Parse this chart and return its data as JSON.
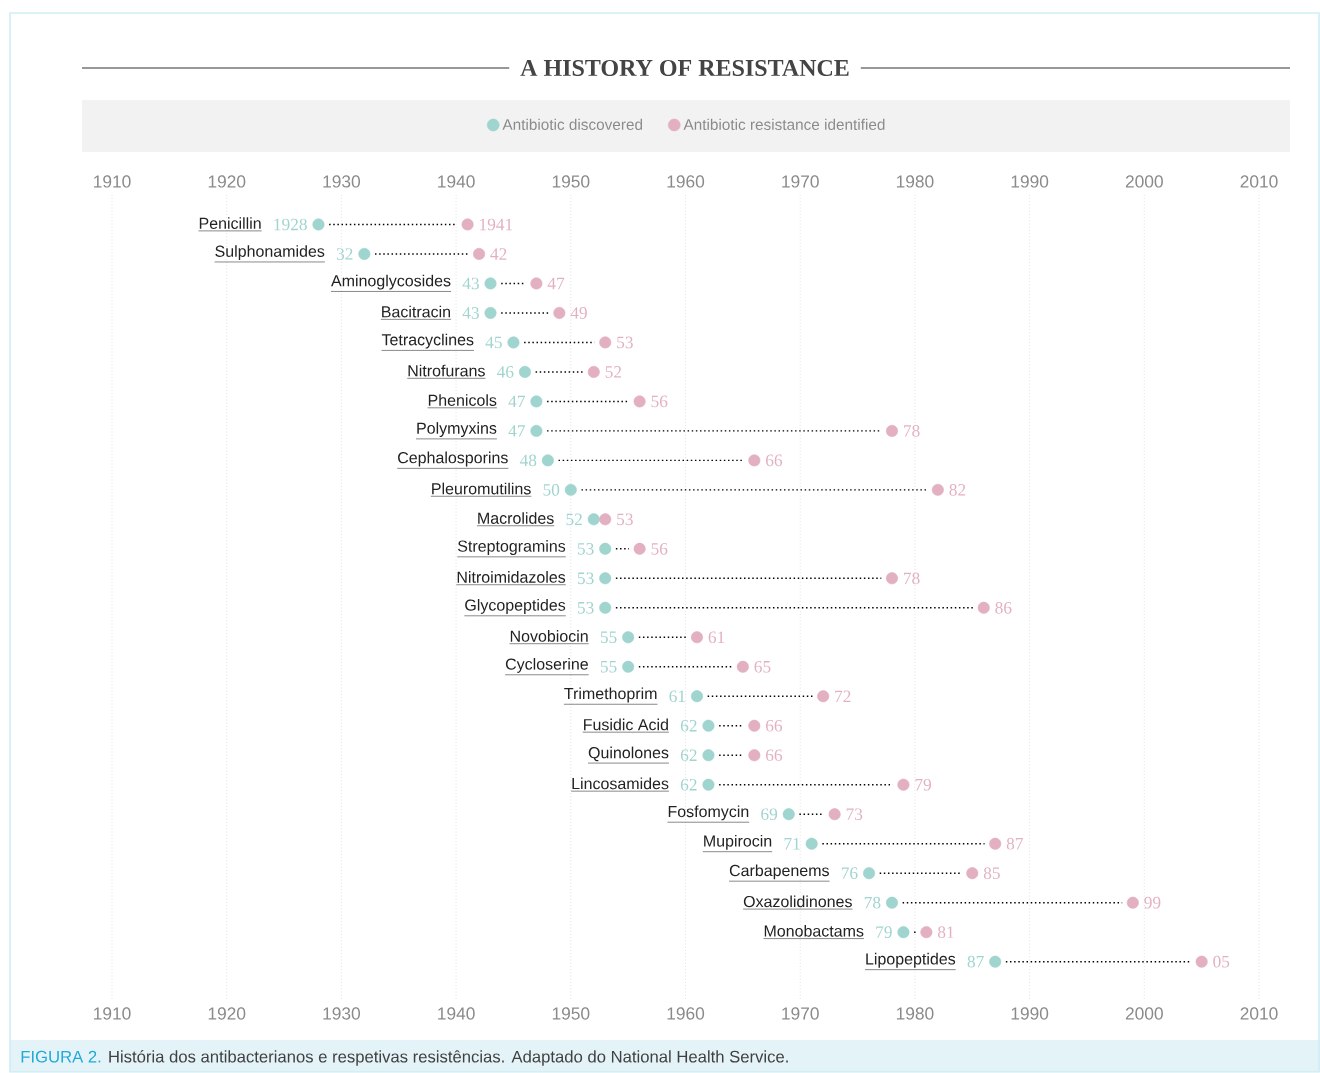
{
  "chart_data": {
    "type": "scatter",
    "orientation": "horizontal",
    "title": "A HISTORY OF RESISTANCE",
    "annotations": [
      "FIGURA 2.",
      "História dos antibacterianos e respetivas resistências. Adaptado do National Health Service."
    ],
    "categories": [
      "Penicillin",
      "Sulphonamides",
      "Aminoglycosides",
      "Bacitracin",
      "Tetracyclines",
      "Nitrofurans",
      "Phenicols",
      "Polymyxins",
      "Cephalosporins",
      "Pleuromutilins",
      "Macrolides",
      "Streptogramins",
      "Nitroimidazoles",
      "Glycopeptides",
      "Novobiocin",
      "Cycloserine",
      "Trimethoprim",
      "Fusidic Acid",
      "Quinolones",
      "Lincosamides",
      "Fosfomycin",
      "Mupirocin",
      "Carbapenems",
      "Oxazolidinones",
      "Monobactams",
      "Lipopeptides"
    ],
    "series": [
      {
        "name": "Antibiotic discovered",
        "color": "#9fd4cf",
        "values": [
          1928,
          1932,
          1943,
          1943,
          1945,
          1946,
          1947,
          1947,
          1948,
          1950,
          1952,
          1953,
          1953,
          1953,
          1955,
          1955,
          1961,
          1962,
          1962,
          1962,
          1969,
          1971,
          1976,
          1978,
          1979,
          1987
        ],
        "value_labels": [
          "1928",
          "32",
          "43",
          "43",
          "45",
          "46",
          "47",
          "47",
          "48",
          "50",
          "52",
          "53",
          "53",
          "53",
          "55",
          "55",
          "61",
          "62",
          "62",
          "62",
          "69",
          "71",
          "76",
          "78",
          "79",
          "87"
        ]
      },
      {
        "name": "Antibiotic resistance identified",
        "color": "#e3b0c2",
        "values": [
          1941,
          1942,
          1947,
          1949,
          1953,
          1952,
          1956,
          1978,
          1966,
          1982,
          1953,
          1956,
          1978,
          1986,
          1961,
          1965,
          1972,
          1966,
          1966,
          1979,
          1973,
          1987,
          1985,
          1999,
          1981,
          2005
        ],
        "value_labels": [
          "1941",
          "42",
          "47",
          "49",
          "53",
          "52",
          "56",
          "78",
          "66",
          "82",
          "53",
          "56",
          "78",
          "86",
          "61",
          "65",
          "72",
          "66",
          "66",
          "79",
          "73",
          "87",
          "85",
          "99",
          "81",
          "05"
        ]
      }
    ],
    "xlim": [
      1910,
      2010
    ],
    "xticks": [
      1910,
      1920,
      1930,
      1940,
      1950,
      1960,
      1970,
      1980,
      1990,
      2000,
      2010
    ],
    "x2lim": [
      1910,
      2010
    ],
    "x2ticks": [
      1910,
      1920,
      1930,
      1940,
      1950,
      1960,
      1970,
      1980,
      1990,
      2000,
      2010
    ],
    "grid": "x",
    "legend": "top",
    "marker": "circle",
    "line_style": "dotted"
  }
}
